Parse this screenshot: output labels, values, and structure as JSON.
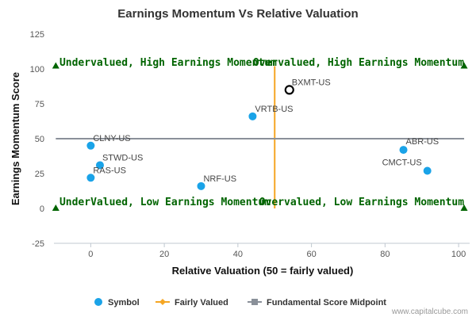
{
  "chart_data": {
    "type": "scatter",
    "title": "Earnings Momentum Vs Relative Valuation",
    "xlabel": "Relative Valuation (50 = fairly valued)",
    "ylabel": "Earnings Momentum Score",
    "xlim": [
      -10,
      103
    ],
    "ylim": [
      -25,
      125
    ],
    "x_ticks": [
      0,
      20,
      40,
      60,
      80,
      100
    ],
    "y_ticks": [
      -25,
      0,
      25,
      50,
      75,
      100,
      125
    ],
    "fairly_valued_x": 50,
    "midpoint_y": 50,
    "points": [
      {
        "label": "BXMT-US",
        "x": 54,
        "y": 85,
        "highlight": true
      },
      {
        "label": "VRTB-US",
        "x": 44,
        "y": 66
      },
      {
        "label": "CLNY-US",
        "x": 0,
        "y": 45
      },
      {
        "label": "STWD-US",
        "x": 2.5,
        "y": 31
      },
      {
        "label": "RAS-US",
        "x": 0,
        "y": 22
      },
      {
        "label": "NRF-US",
        "x": 30,
        "y": 16
      },
      {
        "label": "ABR-US",
        "x": 85,
        "y": 42
      },
      {
        "label": "CMCT-US",
        "x": 91.5,
        "y": 27
      }
    ],
    "quadrant_labels": [
      {
        "text": "Undervalued, High Earnings Momentum",
        "x": -8.5,
        "y": 100,
        "anchor": "start"
      },
      {
        "text": "Overvalued, High Earnings Momentum",
        "x": 101.5,
        "y": 100,
        "anchor": "end"
      },
      {
        "text": "UnderValued, Low Earnings Momentum",
        "x": -8.5,
        "y": 0,
        "anchor": "start"
      },
      {
        "text": "Overvalued, Low Earnings Momentum",
        "x": 101.5,
        "y": 0,
        "anchor": "end"
      }
    ],
    "corner_markers": [
      {
        "x": -9.5,
        "y": 102
      },
      {
        "x": 101.5,
        "y": 102
      },
      {
        "x": -9.5,
        "y": 0
      },
      {
        "x": 101.5,
        "y": 0
      }
    ],
    "legend": [
      {
        "label": "Symbol",
        "type": "dot"
      },
      {
        "label": "Fairly Valued",
        "type": "diamond-line"
      },
      {
        "label": "Fundamental Score Midpoint",
        "type": "square-line"
      }
    ],
    "colors": {
      "points": "#1aa3e8",
      "fairly_valued": "#f5a623",
      "midpoint": "#8a9099",
      "quadrant": "#006400",
      "marker": "#006400"
    }
  },
  "credit": "www.capitalcube.com"
}
